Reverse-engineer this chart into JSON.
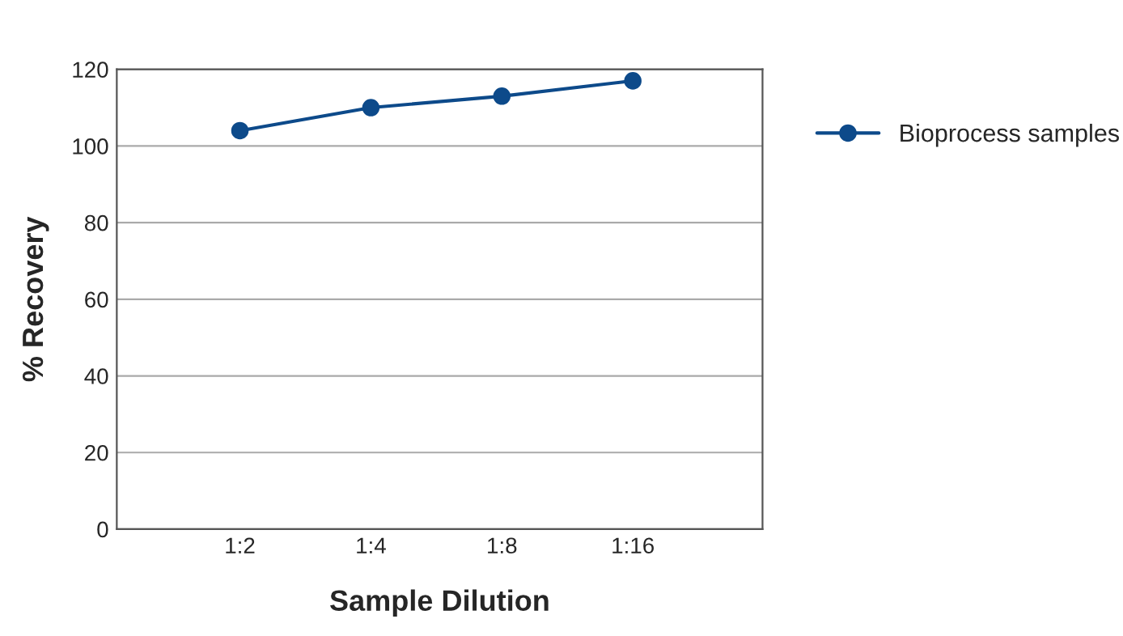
{
  "chart_data": {
    "type": "line",
    "xlabel": "Sample Dilution",
    "ylabel": "% Recovery",
    "categories": [
      "1:2",
      "1:4",
      "1:8",
      "1:16"
    ],
    "series": [
      {
        "name": "Bioprocess samples",
        "color": "#0d4a8a",
        "values": [
          104,
          110,
          113,
          117
        ]
      }
    ],
    "ylim": [
      0,
      120
    ],
    "yticks": [
      0,
      20,
      40,
      60,
      80,
      100,
      120
    ],
    "grid": "y",
    "legend": "right",
    "marker": "circle",
    "line_style": "solid"
  }
}
